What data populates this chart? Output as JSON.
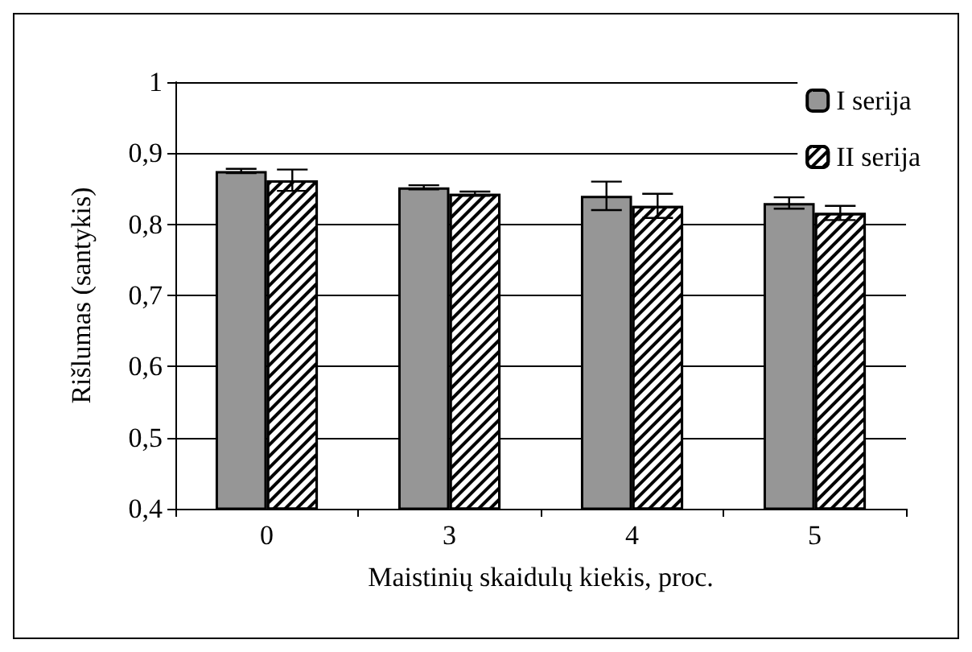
{
  "chart_data": {
    "type": "bar",
    "xlabel": "Maistinių skaidulų kiekis, proc.",
    "ylabel": "Rišlumas (santykis)",
    "categories": [
      "0",
      "3",
      "4",
      "5"
    ],
    "series": [
      {
        "name": "I serija",
        "color": "#969696",
        "values": [
          0.875,
          0.852,
          0.84,
          0.83
        ],
        "errors": [
          0.003,
          0.003,
          0.02,
          0.008
        ]
      },
      {
        "name": "II serija",
        "color": "#ffffff",
        "values": [
          0.862,
          0.843,
          0.826,
          0.816
        ],
        "errors": [
          0.015,
          0.003,
          0.017,
          0.01
        ]
      }
    ],
    "ylim": [
      0.4,
      1
    ],
    "yticks": [
      {
        "value": 0.4,
        "label": "0,4"
      },
      {
        "value": 0.5,
        "label": "0,5"
      },
      {
        "value": 0.6,
        "label": "0,6"
      },
      {
        "value": 0.7,
        "label": "0,7"
      },
      {
        "value": 0.8,
        "label": "0,8"
      },
      {
        "value": 0.9,
        "label": "0,9"
      },
      {
        "value": 1,
        "label": "1"
      }
    ],
    "grid": "y",
    "legend": "top right"
  }
}
